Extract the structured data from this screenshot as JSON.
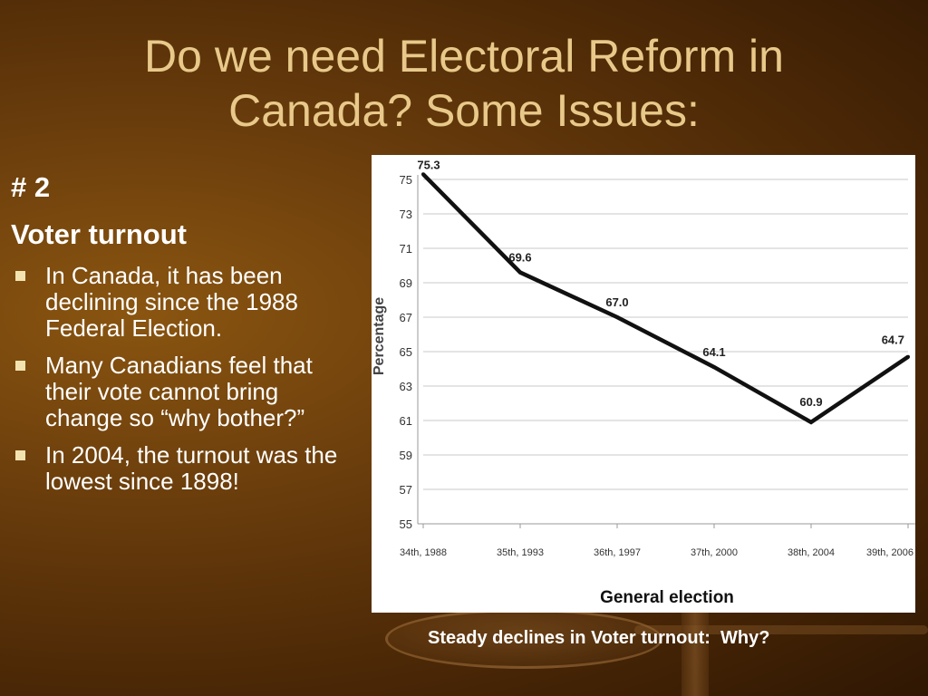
{
  "slide": {
    "title_line1": "Do we need Electoral Reform in",
    "title_line2": "Canada? Some Issues:",
    "number": "# 2",
    "heading": "Voter turnout",
    "bullets": [
      "In Canada, it has been declining since the 1988 Federal Election.",
      "Many Canadians feel that their vote cannot bring change so “why bother?”",
      "In 2004, the turnout was the lowest since 1898!"
    ],
    "caption": "Steady declines in Voter turnout:  Why?",
    "bullet_color": "#f3e3b0",
    "title_color": "#e8c98a"
  },
  "chart_data": {
    "type": "line",
    "categories": [
      "34th, 1988",
      "35th, 1993",
      "36th, 1997",
      "37th, 2000",
      "38th, 2004",
      "39th, 2006"
    ],
    "values": [
      75.3,
      69.6,
      67.0,
      64.1,
      60.9,
      64.7
    ],
    "data_labels": [
      "75.3",
      "69.6",
      "67.0",
      "64.1",
      "60.9",
      "64.7"
    ],
    "xlabel": "General election",
    "ylabel": "Percentage",
    "ylim": [
      55,
      75
    ],
    "yticks": [
      "55",
      "57",
      "59",
      "61",
      "63",
      "65",
      "67",
      "69",
      "71",
      "73",
      "75"
    ],
    "grid": true,
    "line_color": "#111111"
  }
}
